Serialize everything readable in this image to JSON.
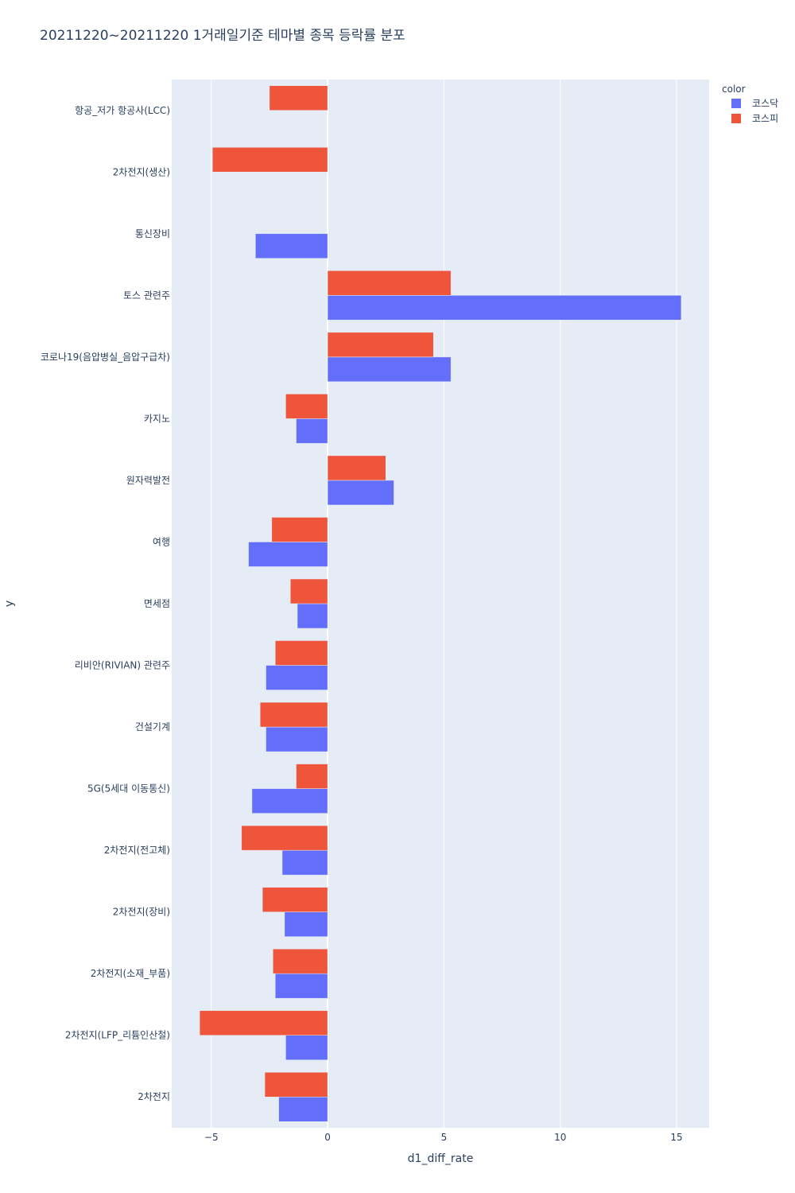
{
  "chart_data": {
    "type": "bar",
    "orientation": "horizontal",
    "barmode": "group",
    "title": "20211220~20211220 1거래일기준 테마별 종목 등락률 분포",
    "xlabel": "d1_diff_rate",
    "ylabel": "y",
    "xlim": [
      -6.7,
      16.4
    ],
    "x_ticks": [
      -5,
      0,
      5,
      10,
      15
    ],
    "x_tick_labels": [
      "−5",
      "0",
      "5",
      "10",
      "15"
    ],
    "grid": true,
    "legend_title": "color",
    "legend_position": "top-right",
    "categories": [
      "항공_저가 항공사(LCC)",
      "2차전지(생산)",
      "통신장비",
      "토스 관련주",
      "코로나19(음압병실_음압구급차)",
      "카지노",
      "원자력발전",
      "여행",
      "면세점",
      "리비안(RIVIAN) 관련주",
      "건설기계",
      "5G(5세대 이동통신)",
      "2차전지(전고체)",
      "2차전지(장비)",
      "2차전지(소재_부품)",
      "2차전지(LFP_리튬인산철)",
      "2차전지"
    ],
    "series": [
      {
        "name": "코스닥",
        "color": "#636efa",
        "values": [
          null,
          null,
          -3.1,
          15.2,
          5.3,
          -1.35,
          2.85,
          -3.4,
          -1.3,
          -2.65,
          -2.65,
          -3.25,
          -1.95,
          -1.85,
          -2.25,
          -1.8,
          -2.1
        ]
      },
      {
        "name": "코스피",
        "color": "#ef553b",
        "values": [
          -2.5,
          -4.95,
          null,
          5.3,
          4.55,
          -1.8,
          2.5,
          -2.4,
          -1.6,
          -2.25,
          -2.9,
          -1.35,
          -3.7,
          -2.8,
          -2.35,
          -5.5,
          -2.7
        ]
      }
    ],
    "colors": {
      "plot_bg": "#e5ecf6",
      "grid": "#ffffff",
      "text": "#2a3f5f"
    }
  }
}
